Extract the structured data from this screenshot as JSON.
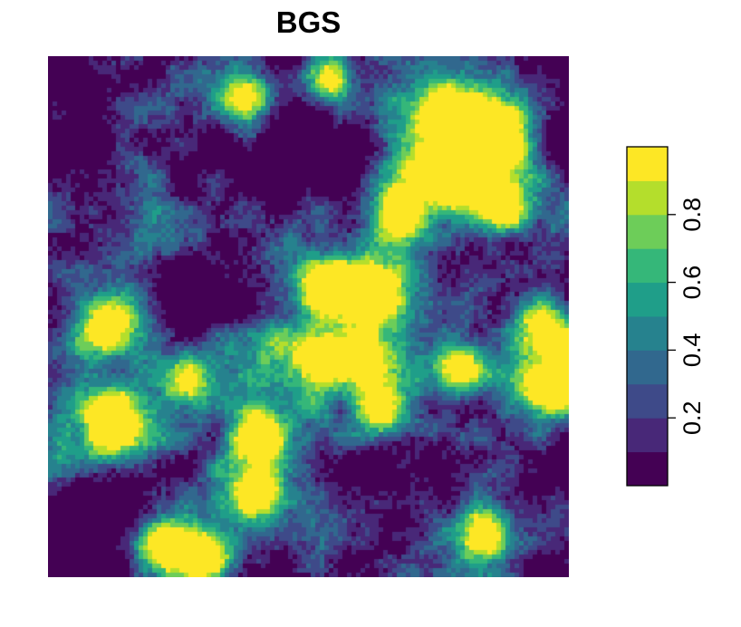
{
  "chart_data": {
    "type": "heatmap",
    "title": "BGS",
    "xlabel": "",
    "ylabel": "",
    "value_range": [
      0,
      1
    ],
    "grid": false,
    "legend_position": "right",
    "colorbar": {
      "breaks": [
        0.0,
        0.1,
        0.2,
        0.3,
        0.4,
        0.5,
        0.6,
        0.7,
        0.8,
        0.9,
        1.0
      ],
      "colors": [
        "#440154",
        "#482878",
        "#3E4A89",
        "#31688E",
        "#26828E",
        "#1F9E89",
        "#35B779",
        "#6DCD59",
        "#B4DE2C",
        "#FDE725"
      ],
      "tick_values": [
        0.2,
        0.4,
        0.6,
        0.8
      ],
      "tick_labels": [
        "0.2",
        "0.4",
        "0.6",
        "0.8"
      ]
    },
    "grid_shape": {
      "rows": 115,
      "cols": 115
    },
    "hotspots": [
      {
        "x": 0.12,
        "y": 0.7,
        "peak": 1.0
      },
      {
        "x": 0.22,
        "y": 0.94,
        "peak": 0.9
      },
      {
        "x": 0.3,
        "y": 0.96,
        "peak": 0.95
      },
      {
        "x": 0.4,
        "y": 0.84,
        "peak": 0.9
      },
      {
        "x": 0.41,
        "y": 0.73,
        "peak": 0.95
      },
      {
        "x": 0.84,
        "y": 0.92,
        "peak": 0.9
      },
      {
        "x": 0.8,
        "y": 0.6,
        "peak": 0.9
      },
      {
        "x": 0.64,
        "y": 0.68,
        "peak": 0.85
      },
      {
        "x": 0.53,
        "y": 0.58,
        "peak": 0.85
      },
      {
        "x": 0.6,
        "y": 0.58,
        "peak": 0.9
      },
      {
        "x": 0.63,
        "y": 0.46,
        "peak": 0.95
      },
      {
        "x": 0.67,
        "y": 0.3,
        "peak": 1.0
      },
      {
        "x": 0.78,
        "y": 0.24,
        "peak": 0.95
      },
      {
        "x": 0.86,
        "y": 0.15,
        "peak": 1.0
      },
      {
        "x": 0.87,
        "y": 0.29,
        "peak": 0.9
      },
      {
        "x": 0.77,
        "y": 0.12,
        "peak": 0.9
      },
      {
        "x": 0.12,
        "y": 0.52,
        "peak": 0.85
      },
      {
        "x": 0.27,
        "y": 0.62,
        "peak": 0.75
      },
      {
        "x": 0.53,
        "y": 0.44,
        "peak": 0.8
      },
      {
        "x": 0.95,
        "y": 0.52,
        "peak": 0.75
      },
      {
        "x": 0.54,
        "y": 0.04,
        "peak": 1.0
      },
      {
        "x": 0.38,
        "y": 0.08,
        "peak": 0.8
      },
      {
        "x": 0.96,
        "y": 0.64,
        "peak": 0.95
      }
    ]
  }
}
